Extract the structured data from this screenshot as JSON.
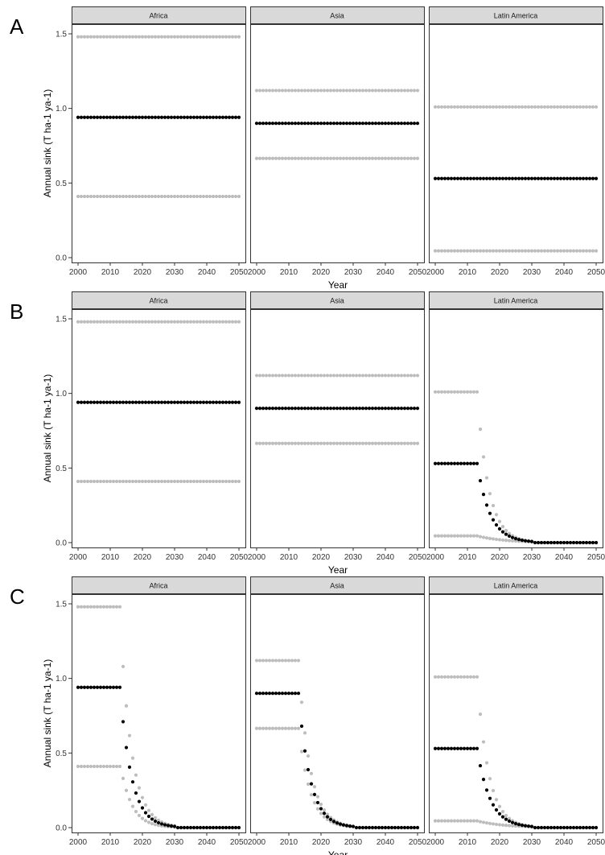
{
  "colors": {
    "central": "#000000",
    "bound": "#bdbdbd",
    "strip_fill": "#d9d9d9",
    "strip_border": "#333333",
    "panel_border": "#333333"
  },
  "chart_data": [
    {
      "panel": "A",
      "type": "scatter",
      "xlabel": "Year",
      "ylabel": "Annual sink (T ha-1 ya-1)",
      "xlim": [
        2000,
        2050
      ],
      "ylim": [
        0,
        1.5
      ],
      "x_ticks": [
        "2000",
        "2010",
        "2020",
        "2030",
        "2040",
        "2050"
      ],
      "y_ticks": [
        "0.0",
        "0.5",
        "1.0",
        "1.5"
      ],
      "grid": false,
      "facets": [
        {
          "name": "Africa",
          "upper": {
            "plateau": 1.48
          },
          "central": {
            "plateau": 0.94
          },
          "lower": {
            "plateau": 0.41
          }
        },
        {
          "name": "Asia",
          "upper": {
            "plateau": 1.12
          },
          "central": {
            "plateau": 0.9
          },
          "lower": {
            "plateau": 0.665
          }
        },
        {
          "name": "Latin America",
          "upper": {
            "plateau": 1.01
          },
          "central": {
            "plateau": 0.53
          },
          "lower": {
            "plateau": 0.045
          }
        }
      ]
    },
    {
      "panel": "B",
      "type": "scatter",
      "xlabel": "Year",
      "ylabel": "Annual sink (T ha-1 ya-1)",
      "xlim": [
        2000,
        2050
      ],
      "ylim": [
        0,
        1.5
      ],
      "x_ticks": [
        "2000",
        "2010",
        "2020",
        "2030",
        "2040",
        "2050"
      ],
      "y_ticks": [
        "0.0",
        "0.5",
        "1.0",
        "1.5"
      ],
      "grid": false,
      "facets": [
        {
          "name": "Africa",
          "upper": {
            "plateau": 1.48
          },
          "central": {
            "plateau": 0.94
          },
          "lower": {
            "plateau": 0.41
          }
        },
        {
          "name": "Asia",
          "upper": {
            "plateau": 1.12
          },
          "central": {
            "plateau": 0.9
          },
          "lower": {
            "plateau": 0.665
          }
        },
        {
          "name": "Latin America",
          "upper": {
            "plateau": 1.01,
            "plateau_end": 2013,
            "decay_start_value": 0.76,
            "decay_rate": 0.28,
            "zero_from": 2031
          },
          "central": {
            "plateau": 0.53,
            "plateau_end": 2013,
            "decay_start_value": 0.415,
            "decay_rate": 0.25,
            "zero_from": 2031
          },
          "lower": {
            "plateau": 0.045,
            "plateau_end": 2013,
            "decay_start_value": 0.04,
            "decay_rate": 0.12,
            "zero_from": 2031
          }
        }
      ]
    },
    {
      "panel": "C",
      "type": "scatter",
      "xlabel": "Year",
      "ylabel": "Annual sink (T ha-1 ya-1)",
      "xlim": [
        2000,
        2050
      ],
      "ylim": [
        0,
        1.5
      ],
      "x_ticks": [
        "2000",
        "2010",
        "2020",
        "2030",
        "2040",
        "2050"
      ],
      "y_ticks": [
        "0.0",
        "0.5",
        "1.0",
        "1.5"
      ],
      "grid": false,
      "facets": [
        {
          "name": "Africa",
          "upper": {
            "plateau": 1.48,
            "plateau_end": 2013,
            "decay_start_value": 1.08,
            "decay_rate": 0.28,
            "zero_from": 2031
          },
          "central": {
            "plateau": 0.94,
            "plateau_end": 2013,
            "decay_start_value": 0.71,
            "decay_rate": 0.28,
            "zero_from": 2031
          },
          "lower": {
            "plateau": 0.41,
            "plateau_end": 2013,
            "decay_start_value": 0.33,
            "decay_rate": 0.28,
            "zero_from": 2031
          }
        },
        {
          "name": "Asia",
          "upper": {
            "plateau": 1.12,
            "plateau_end": 2013,
            "decay_start_value": 0.84,
            "decay_rate": 0.28,
            "zero_from": 2031
          },
          "central": {
            "plateau": 0.9,
            "plateau_end": 2013,
            "decay_start_value": 0.68,
            "decay_rate": 0.28,
            "zero_from": 2031
          },
          "lower": {
            "plateau": 0.665,
            "plateau_end": 2013,
            "decay_start_value": 0.51,
            "decay_rate": 0.28,
            "zero_from": 2031
          }
        },
        {
          "name": "Latin America",
          "upper": {
            "plateau": 1.01,
            "plateau_end": 2013,
            "decay_start_value": 0.76,
            "decay_rate": 0.28,
            "zero_from": 2031
          },
          "central": {
            "plateau": 0.53,
            "plateau_end": 2013,
            "decay_start_value": 0.415,
            "decay_rate": 0.25,
            "zero_from": 2031
          },
          "lower": {
            "plateau": 0.045,
            "plateau_end": 2013,
            "decay_start_value": 0.04,
            "decay_rate": 0.12,
            "zero_from": 2031
          }
        }
      ]
    }
  ]
}
